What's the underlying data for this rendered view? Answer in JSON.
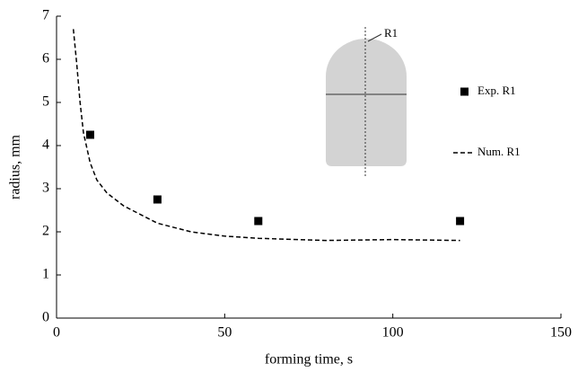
{
  "chart_data": {
    "type": "scatter",
    "xlabel": "forming time, s",
    "ylabel": "radius, mm",
    "xlim": [
      0,
      150
    ],
    "xticks": [
      0,
      50,
      100,
      150
    ],
    "ylim": [
      0,
      7
    ],
    "yticks": [
      0,
      1,
      2,
      3,
      4,
      5,
      6,
      7
    ],
    "grid": false,
    "legend": "right",
    "annotation": "R1",
    "series": [
      {
        "name": "Exp. R1",
        "type": "scatter",
        "color": "#000000",
        "x": [
          10,
          30,
          60,
          120
        ],
        "values": [
          4.25,
          2.75,
          2.25,
          2.25
        ]
      },
      {
        "name": "Num. R1",
        "type": "line",
        "color": "#000000",
        "x": [
          5,
          6,
          7,
          8,
          10,
          12,
          15,
          20,
          25,
          30,
          40,
          50,
          60,
          80,
          100,
          120
        ],
        "values": [
          6.7,
          5.9,
          5.0,
          4.3,
          3.6,
          3.2,
          2.9,
          2.6,
          2.4,
          2.2,
          2.0,
          1.9,
          1.85,
          1.8,
          1.82,
          1.8
        ]
      }
    ]
  }
}
